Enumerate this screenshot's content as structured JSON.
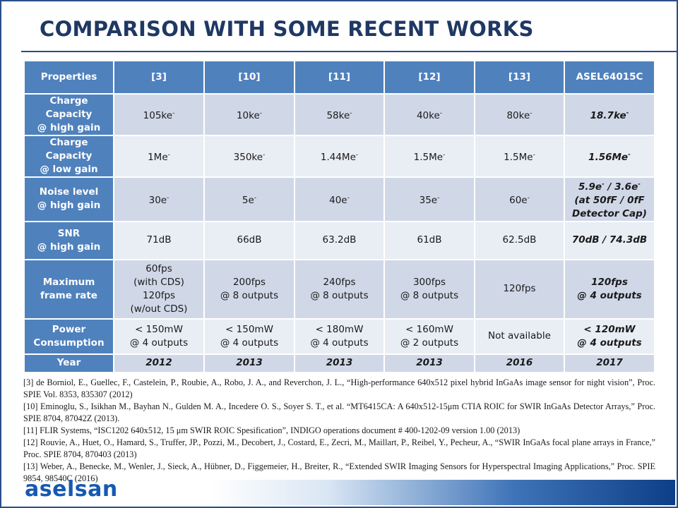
{
  "title": "COMPARISON WITH SOME RECENT WORKS",
  "table": {
    "headers": [
      "Properties",
      "[3]",
      "[10]",
      "[11]",
      "[12]",
      "[13]",
      "ASEL64015C"
    ],
    "rows": [
      {
        "label": [
          "Charge Capacity",
          "@ high gain"
        ],
        "cells": [
          [
            "105ke-"
          ],
          [
            "10ke-"
          ],
          [
            "58ke-"
          ],
          [
            "40ke-"
          ],
          [
            "80ke-"
          ],
          [
            "18.7ke-"
          ]
        ]
      },
      {
        "label": [
          "Charge Capacity",
          "@ low gain"
        ],
        "cells": [
          [
            "1Me-"
          ],
          [
            "350ke-"
          ],
          [
            "1.44Me-"
          ],
          [
            "1.5Me-"
          ],
          [
            "1.5Me-"
          ],
          [
            "1.56Me-"
          ]
        ]
      },
      {
        "label": [
          "Noise level",
          "@ high gain"
        ],
        "cells": [
          [
            "30e-"
          ],
          [
            "5e-"
          ],
          [
            "40e-"
          ],
          [
            "35e-"
          ],
          [
            "60e-"
          ],
          [
            "5.9e- / 3.6e-",
            "(at 50fF / 0fF",
            "Detector Cap)"
          ]
        ]
      },
      {
        "label": [
          "SNR",
          "@ high gain"
        ],
        "cells": [
          [
            "71dB"
          ],
          [
            "66dB"
          ],
          [
            "63.2dB"
          ],
          [
            "61dB"
          ],
          [
            "62.5dB"
          ],
          [
            "70dB / 74.3dB"
          ]
        ]
      },
      {
        "label": [
          "Maximum",
          "frame rate"
        ],
        "cells": [
          [
            "60fps",
            "(with CDS)",
            "120fps",
            "(w/out CDS)"
          ],
          [
            "200fps",
            "@ 8 outputs"
          ],
          [
            "240fps",
            "@ 8 outputs"
          ],
          [
            "300fps",
            "@ 8 outputs"
          ],
          [
            "120fps"
          ],
          [
            "120fps",
            "@ 4 outputs"
          ]
        ]
      },
      {
        "label": [
          "Power",
          "Consumption"
        ],
        "cells": [
          [
            "< 150mW",
            "@ 4 outputs"
          ],
          [
            "< 150mW",
            "@ 4 outputs"
          ],
          [
            "< 180mW",
            "@ 4 outputs"
          ],
          [
            "< 160mW",
            "@ 2 outputs"
          ],
          [
            "Not available"
          ],
          [
            "< 120mW",
            "@ 4 outputs"
          ]
        ]
      },
      {
        "label": [
          "Year"
        ],
        "cells": [
          [
            "2012"
          ],
          [
            "2013"
          ],
          [
            "2013"
          ],
          [
            "2013"
          ],
          [
            "2016"
          ],
          [
            "2017"
          ]
        ]
      }
    ]
  },
  "references": [
    "[3]     de Borniol, E., Guellec, F., Castelein, P., Roubie, A., Robo, J. A., and Reverchon, J. L., “High-performance 640x512 pixel hybrid InGaAs image sensor for night vision”, Proc. SPIE Vol. 8353, 835307 (2012)",
    "[10]    Eminoglu, S., Isikhan M., Bayhan N., Gulden M. A., Incedere O. S., Soyer S. T., et al. “MT6415CA: A 640x512-15μm CTIA ROIC for SWIR InGaAs Detector Arrays,” Proc. SPIE 8704, 87042Z (2013).",
    "[11]    FLIR Systems, “ISC1202 640x512, 15 μm SWIR ROIC Spesification”, INDIGO operations document # 400-1202-09 version 1.00 (2013)",
    "[12]    Rouvie, A., Huet, O., Hamard, S., Truffer, JP., Pozzi, M., Decobert, J., Costard, E., Zecri, M., Maillart, P., Reibel, Y., Pecheur, A., “SWIR InGaAs focal plane arrays in France,” Proc. SPIE 8704, 870403 (2013)",
    "[13]    Weber, A., Benecke, M., Wenler, J., Sieck, A., Hübner, D., Figgemeier, H., Breiter, R., “Extended SWIR Imaging Sensors for Hyperspectral Imaging Applications,” Proc. SPIE 9854, 98540C (2016)"
  ],
  "logo_text": "aselsan"
}
